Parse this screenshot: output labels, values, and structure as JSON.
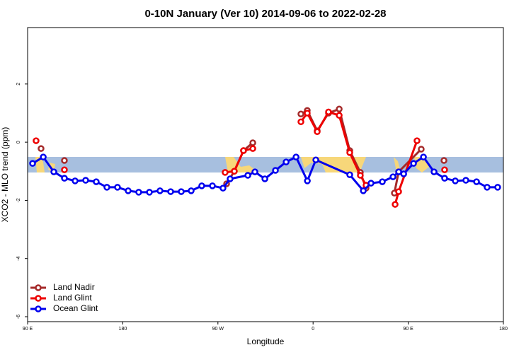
{
  "chart_data": {
    "type": "line",
    "title": "0-10N January (Ver 10)   2014-09-06 to 2022-02-28",
    "x_label": "Longitude",
    "y_label": "XCO2 - MLO trend (ppm)",
    "xlim": [
      90,
      540
    ],
    "xticks": [
      {
        "value": 90,
        "label": "90 E"
      },
      180,
      {
        "value": 270,
        "label": "90 W"
      },
      {
        "value": 360,
        "label": "0"
      },
      {
        "value": 450,
        "label": "90 E"
      },
      {
        "value": 540,
        "label": "180"
      }
    ],
    "ylim": [
      -6.17,
      3.94
    ],
    "yticks": [
      -6,
      -4,
      -2,
      0,
      2
    ],
    "legend": "bottom-left",
    "series": [
      {
        "name": "Land Nadir",
        "color": "#a52a2a",
        "x": [
          102.7,
          113,
          124.8,
          200,
          278.2,
          285.5,
          294.2,
          303.0,
          325,
          348.5,
          354.5,
          363.9,
          374.6,
          384.7,
          394.7,
          404.7,
          410.1,
          423,
          436.9,
          440.9,
          462.3,
          473,
          483.8
        ],
        "values": [
          -0.22,
          null,
          -0.63,
          null,
          -1.43,
          -1.0,
          -0.29,
          -0.02,
          null,
          0.97,
          1.09,
          0.39,
          1.0,
          1.14,
          -0.29,
          -1.04,
          -1.58,
          null,
          -1.75,
          -1.02,
          -0.24,
          null,
          -0.63
        ]
      },
      {
        "name": "Land Glint",
        "color": "#ee0000",
        "x": [
          98.0,
          111,
          124.8,
          200,
          276.8,
          285.5,
          294.2,
          303.0,
          325,
          348.5,
          354.5,
          363.9,
          374.6,
          384.7,
          394.7,
          404.7,
          410.1,
          423,
          437.6,
          440.9,
          458.3,
          471,
          484.4
        ],
        "values": [
          0.05,
          null,
          -0.95,
          null,
          -1.04,
          -1.0,
          -0.29,
          -0.22,
          null,
          0.7,
          1.0,
          0.36,
          1.04,
          0.92,
          -0.36,
          -1.14,
          -1.48,
          null,
          -2.14,
          -1.7,
          0.05,
          null,
          -0.95
        ]
      },
      {
        "name": "Ocean Glint",
        "color": "#0000ee",
        "x": [
          94.7,
          104.8,
          114.8,
          124.8,
          134.9,
          144.9,
          154.9,
          165.0,
          175.0,
          185.1,
          195.1,
          205.2,
          215.2,
          225.3,
          235.3,
          244.7,
          254.7,
          264.8,
          274.8,
          281.5,
          298.3,
          305.0,
          314.4,
          324.4,
          334.5,
          343.9,
          354.6,
          362.6,
          394.7,
          407.5,
          414.8,
          425.5,
          435.6,
          441.0,
          445.7,
          455.0,
          464.4,
          474.4,
          484.4,
          494.5,
          504.5,
          514.6,
          524.6,
          534.6
        ],
        "values": [
          -0.73,
          -0.51,
          -1.02,
          -1.24,
          -1.33,
          -1.31,
          -1.36,
          -1.55,
          -1.55,
          -1.67,
          -1.72,
          -1.72,
          -1.67,
          -1.7,
          -1.7,
          -1.67,
          -1.5,
          -1.5,
          -1.58,
          -1.26,
          -1.14,
          -1.02,
          -1.26,
          -0.97,
          -0.68,
          -0.51,
          -1.33,
          -0.61,
          -1.12,
          -1.67,
          -1.41,
          -1.36,
          -1.19,
          -1.02,
          -1.09,
          -0.73,
          -0.51,
          -1.02,
          -1.24,
          -1.33,
          -1.31,
          -1.36,
          -1.55,
          -1.55
        ]
      }
    ]
  }
}
